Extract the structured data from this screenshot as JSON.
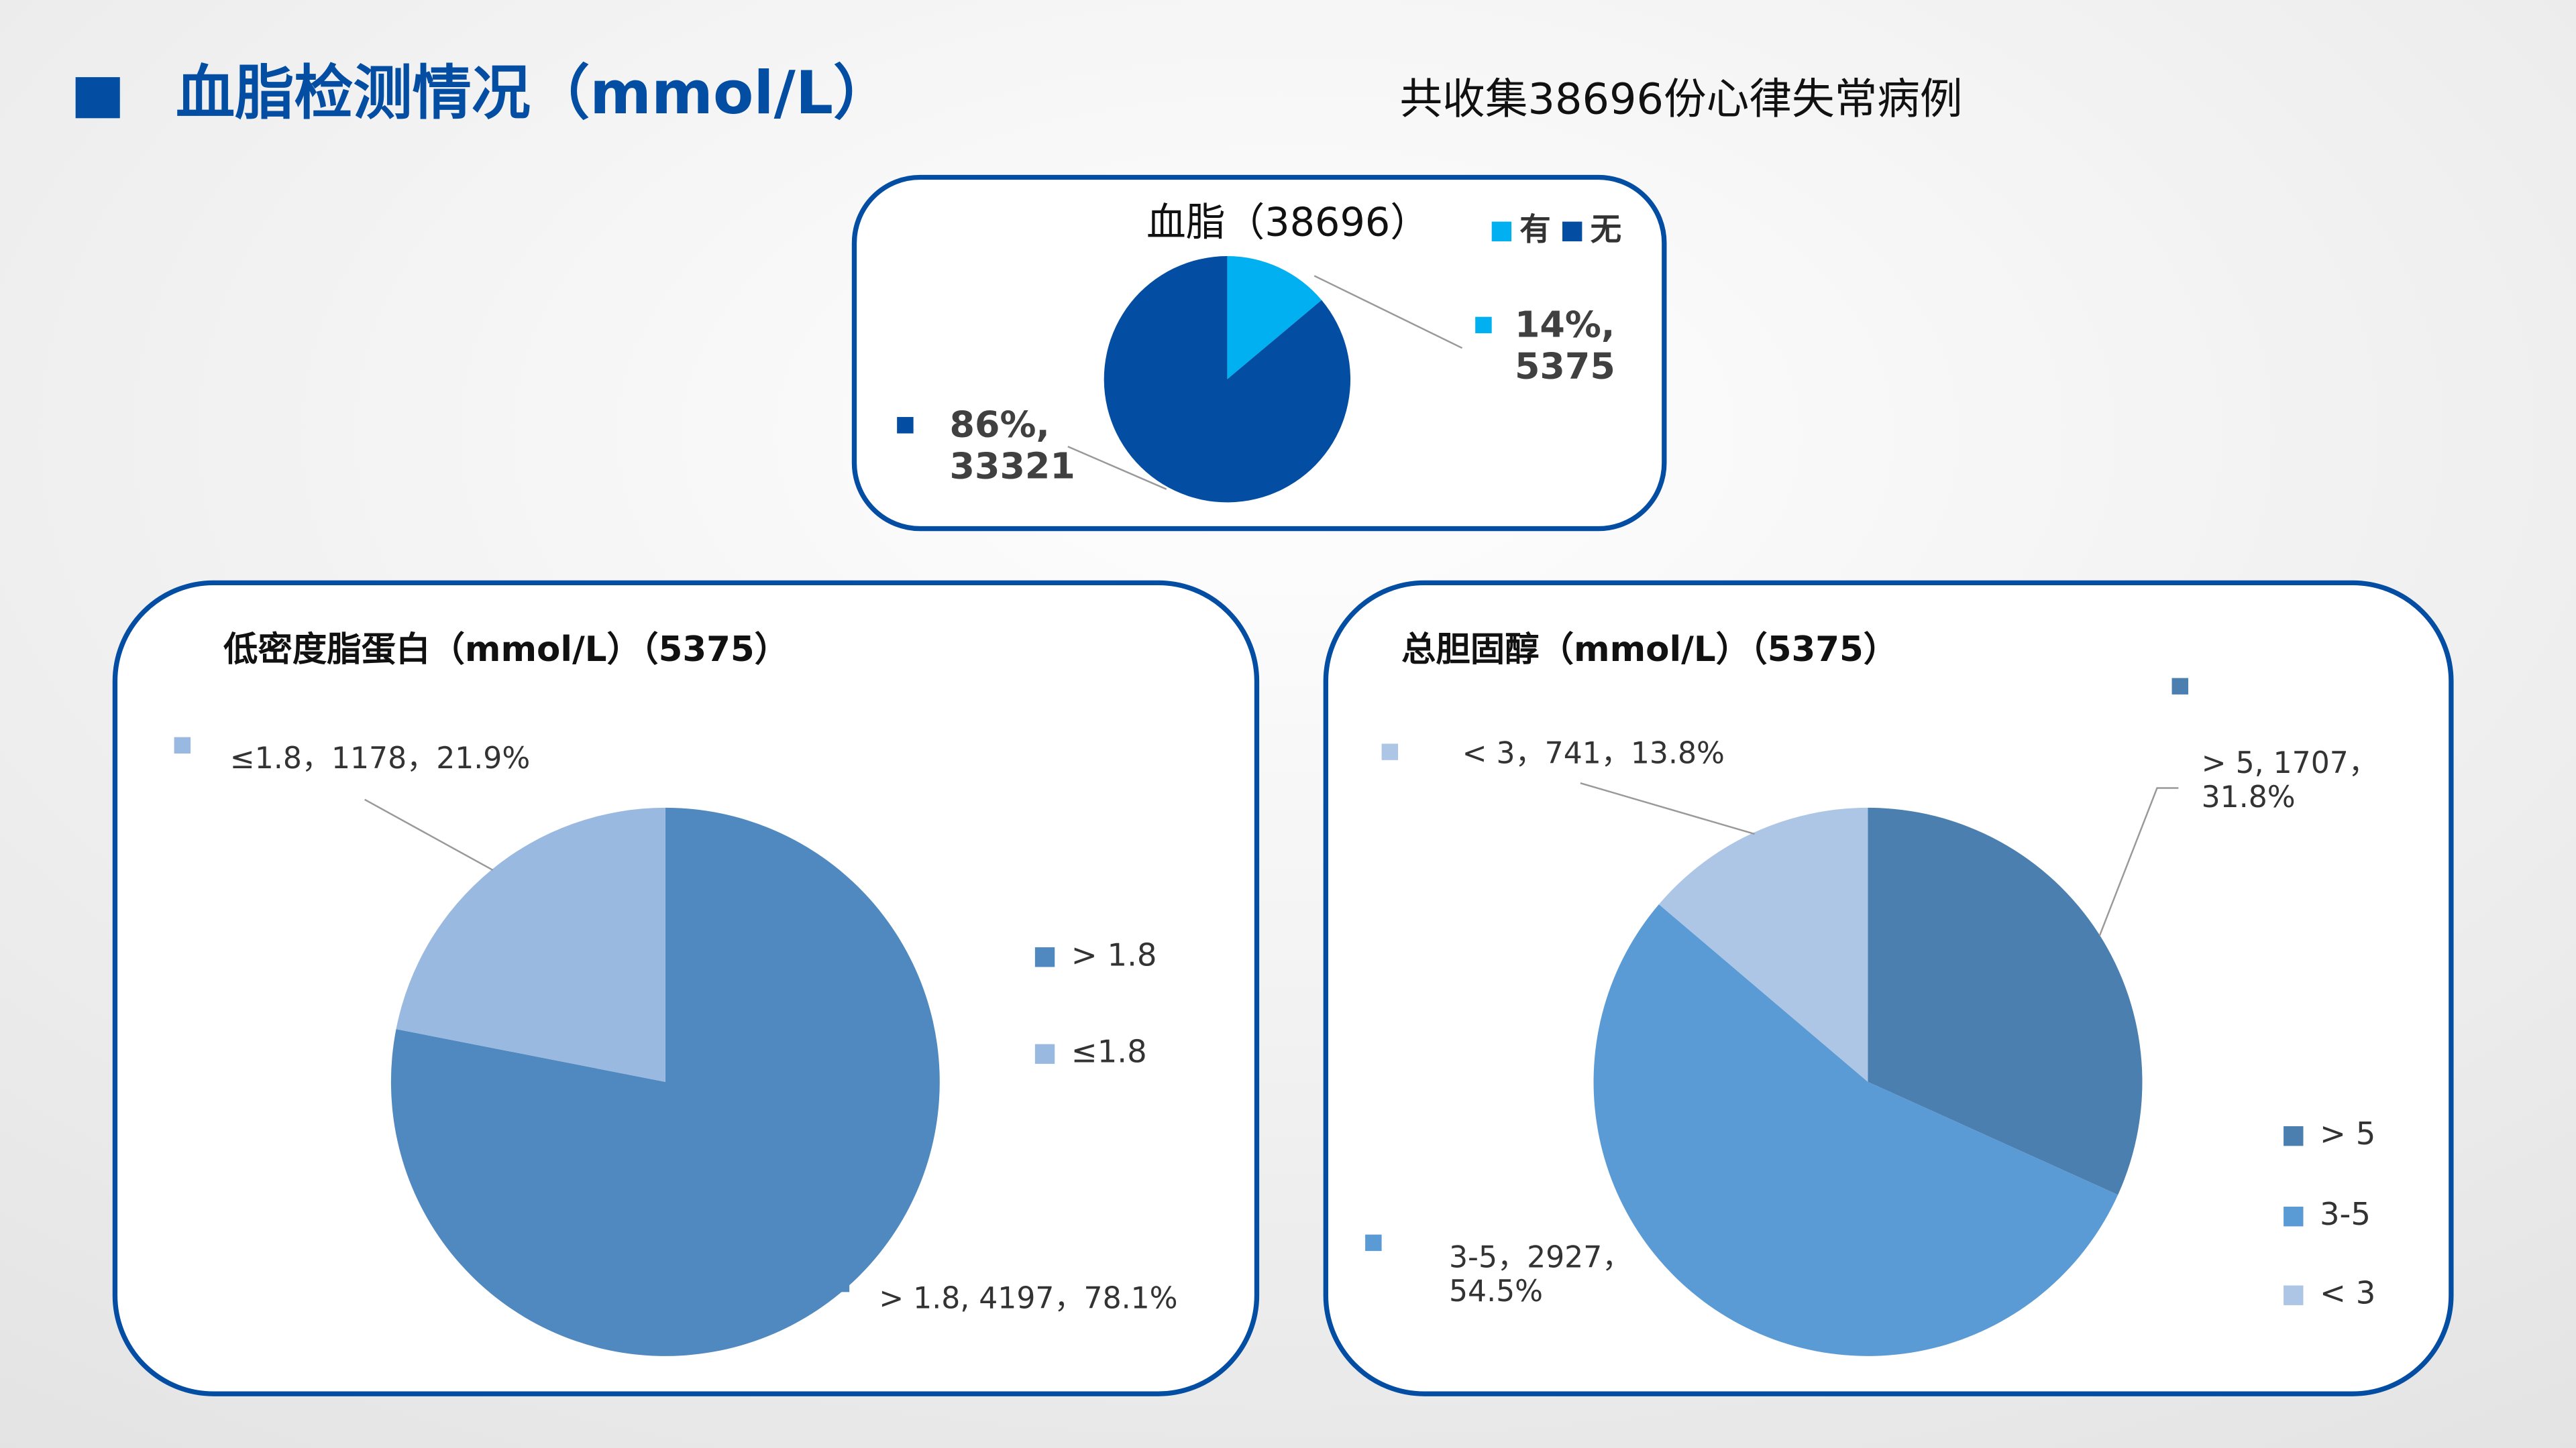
{
  "header": {
    "title": "血脂检测情况（mmol/L）",
    "subtitle": "共收集38696份心律失常病例"
  },
  "chart_data": [
    {
      "type": "pie",
      "title": "血脂（38696）",
      "categories": [
        "有",
        "无"
      ],
      "values": [
        5375,
        33321
      ],
      "value_labels": [
        "14%,\n5375",
        "86%,\n33321"
      ],
      "colors": [
        "#00b0f0",
        "#034ea2"
      ]
    },
    {
      "type": "pie",
      "title": "低密度脂蛋白（mmol/L）（5375）",
      "categories": [
        "> 1.8",
        "≤1.8"
      ],
      "values": [
        4197,
        1178
      ],
      "value_labels": [
        "> 1.8, 4197，78.1%",
        "≤1.8，1178，21.9%"
      ],
      "colors": [
        "#5089c0",
        "#9ab9e0"
      ]
    },
    {
      "type": "pie",
      "title": "总胆固醇（mmol/L）（5375）",
      "categories": [
        "> 5",
        "3-5",
        "< 3"
      ],
      "values": [
        1707,
        2927,
        741
      ],
      "value_labels": [
        "> 5, 1707，\n31.8%",
        "3-5，2927，\n54.5%",
        "< 3，741，13.8%"
      ],
      "colors": [
        "#4a7fb0",
        "#5b9bd5",
        "#adc6e6"
      ]
    }
  ]
}
